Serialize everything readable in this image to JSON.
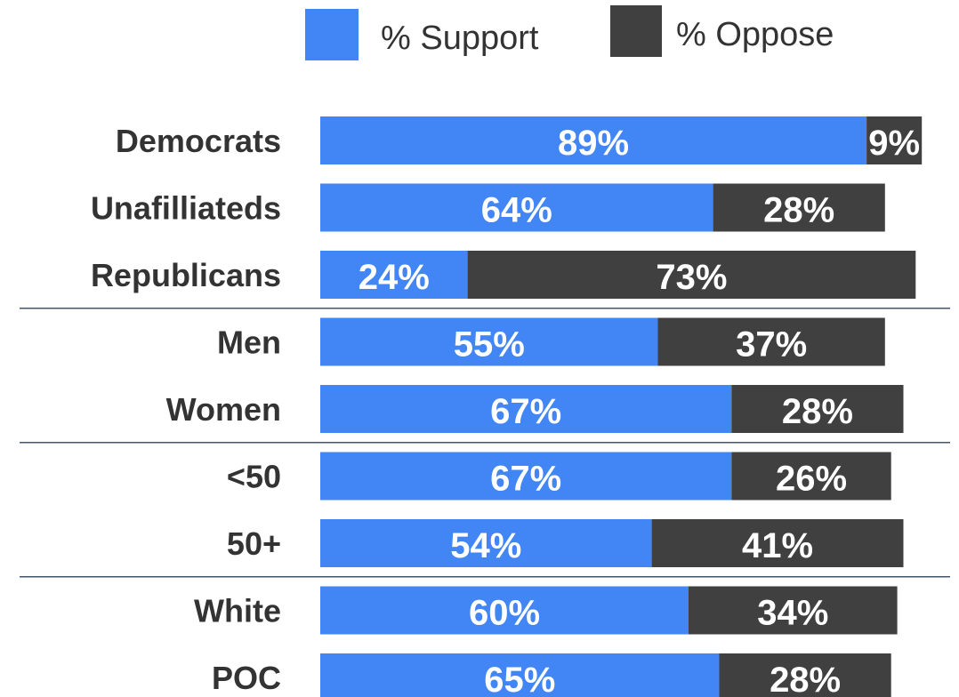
{
  "chart_data": {
    "type": "bar",
    "orientation": "horizontal",
    "stacked": true,
    "categories": [
      "Democrats",
      "Unafilliateds",
      "Republicans",
      "Men",
      "Women",
      "<50",
      "50+",
      "White",
      "POC"
    ],
    "series": [
      {
        "name": "% Support",
        "color": "#4285f4",
        "values": [
          89,
          64,
          24,
          55,
          67,
          67,
          54,
          60,
          65
        ],
        "labels": [
          "89%",
          "64%",
          "24%",
          "55%",
          "67%",
          "67%",
          "54%",
          "60%",
          "65%"
        ]
      },
      {
        "name": "% Oppose",
        "color": "#404040",
        "values": [
          9,
          28,
          73,
          37,
          28,
          26,
          41,
          34,
          28
        ],
        "labels": [
          "9%",
          "28%",
          "73%",
          "37%",
          "28%",
          "26%",
          "41%",
          "34%",
          "28%"
        ]
      }
    ],
    "xlim": [
      0,
      100
    ],
    "group_breaks_after": [
      "Republicans",
      "Women",
      "50+"
    ],
    "grid": false,
    "legend": "top-center"
  }
}
